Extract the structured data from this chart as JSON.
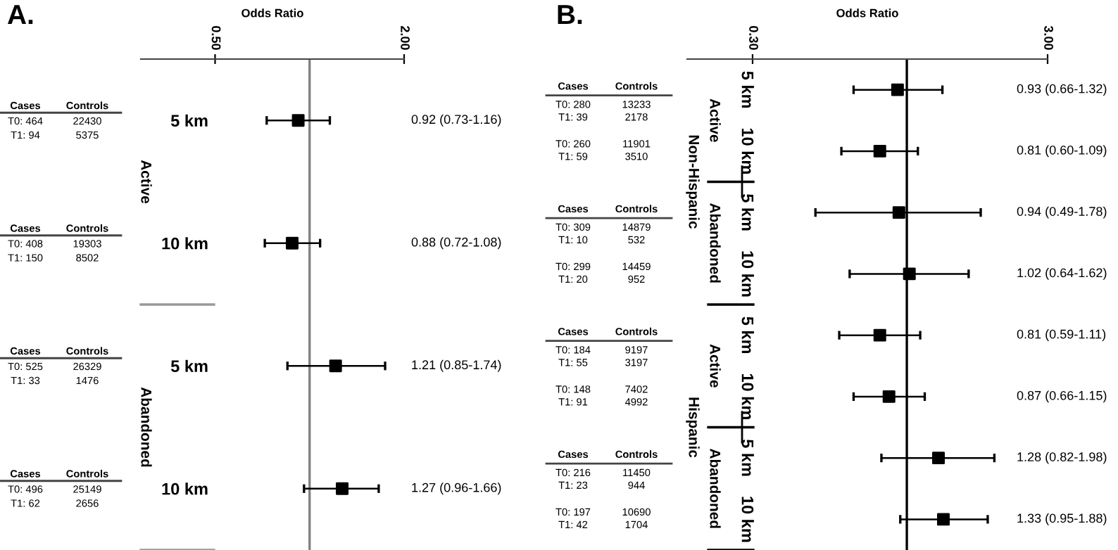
{
  "chart_data": [
    {
      "type": "scatter",
      "title": "A.",
      "xlabel": "Odds Ratio",
      "log": "x",
      "orientation": "horizontal",
      "marker": "square",
      "legend": false,
      "grid": false,
      "categories": [
        "5 km",
        "10 km",
        "5 km",
        "10 km"
      ],
      "series": [
        {
          "color": "#000000",
          "values": [
            0.92,
            0.88,
            1.21,
            1.27
          ],
          "errors": [
            [
              0.73,
              1.16
            ],
            [
              0.72,
              1.08
            ],
            [
              0.85,
              1.74
            ],
            [
              0.96,
              1.66
            ]
          ],
          "value_labels": [
            "0.92 (0.73-1.16)",
            "0.88 (0.72-1.08)",
            "1.21 (0.85-1.74)",
            "1.27 (0.96-1.66)"
          ]
        }
      ],
      "xlim": [
        0.29,
        2.0
      ],
      "xticks": [
        {
          "value": 0.5,
          "label": "0.50"
        },
        {
          "value": 2.0,
          "label": "2.00"
        }
      ],
      "ref_lines": [
        {
          "axis": "x",
          "value": 1,
          "color": "#808080"
        }
      ],
      "annotations": [
        "Cases",
        "Controls",
        "T0: 464",
        "22430",
        "T1: 94",
        "5375",
        "Cases",
        "Controls",
        "T0: 408",
        "19303",
        "T1: 150",
        "8502",
        "Cases",
        "Controls",
        "T0: 525",
        "26329",
        "T1: 33",
        "1476",
        "Cases",
        "Controls",
        "T0: 496",
        "25149",
        "T1: 62",
        "2656",
        "Active",
        "Abandoned"
      ]
    },
    {
      "type": "scatter",
      "title": "B.",
      "xlabel": "Odds Ratio",
      "log": "x",
      "orientation": "horizontal",
      "marker": "square",
      "legend": false,
      "grid": false,
      "categories": [
        "5 km",
        "10 km",
        "5 km",
        "10 km",
        "5 km",
        "10 km",
        "5 km",
        "10 km"
      ],
      "series": [
        {
          "color": "#000000",
          "values": [
            0.93,
            0.81,
            0.94,
            1.02,
            0.81,
            0.87,
            1.28,
            1.33
          ],
          "errors": [
            [
              0.66,
              1.32
            ],
            [
              0.6,
              1.09
            ],
            [
              0.49,
              1.78
            ],
            [
              0.64,
              1.62
            ],
            [
              0.59,
              1.11
            ],
            [
              0.66,
              1.15
            ],
            [
              0.82,
              1.98
            ],
            [
              0.95,
              1.88
            ]
          ],
          "value_labels": [
            "0.93 (0.66-1.32)",
            "0.81 (0.60-1.09)",
            "0.94 (0.49-1.78)",
            "1.02 (0.64-1.62)",
            "0.81 (0.59-1.11)",
            "0.87 (0.66-1.15)",
            "1.28 (0.82-1.98)",
            "1.33 (0.95-1.88)"
          ]
        }
      ],
      "xlim": [
        0.18,
        3.0
      ],
      "xticks": [
        {
          "value": 0.3,
          "label": "0.30"
        },
        {
          "value": 3.0,
          "label": "3.00"
        }
      ],
      "ref_lines": [
        {
          "axis": "x",
          "value": 1,
          "color": "#000000"
        }
      ],
      "annotations": [
        "Cases",
        "Controls",
        "T0: 280",
        "13233",
        "T1: 39",
        "2178",
        "T0: 260",
        "11901",
        "T1: 59",
        "3510",
        "Cases",
        "Controls",
        "T0: 309",
        "14879",
        "T1: 10",
        "532",
        "T0: 299",
        "14459",
        "T1: 20",
        "952",
        "Cases",
        "Controls",
        "T0: 184",
        "9197",
        "T1: 55",
        "3197",
        "T0: 148",
        "7402",
        "T1: 91",
        "4992",
        "Cases",
        "Controls",
        "T0: 216",
        "11450",
        "T1: 23",
        "944",
        "T0: 197",
        "10690",
        "T1: 42",
        "1704",
        "Active",
        "Abandoned",
        "Active",
        "Abandoned",
        "Non-Hispanic",
        "Hispanic"
      ]
    }
  ]
}
